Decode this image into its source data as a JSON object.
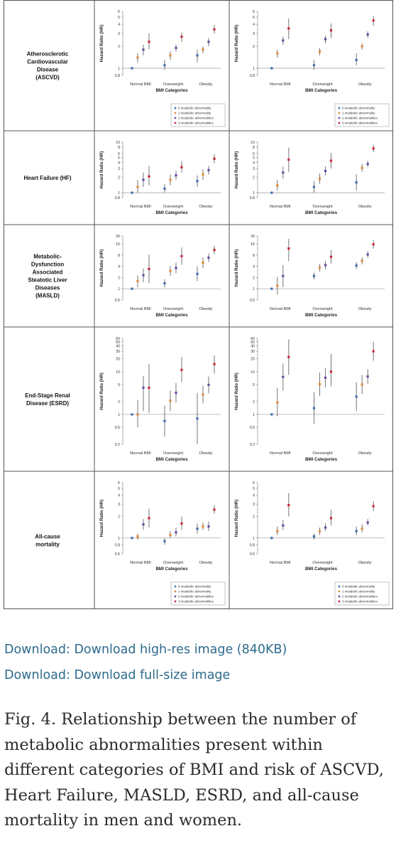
{
  "figure": {
    "xlabel": "BMI Categories",
    "ylabel": "Hazard Ratio (HR)",
    "categories": [
      "Normal BMI",
      "Overweight",
      "Obesity"
    ],
    "colors": [
      "#3f6fae",
      "#e28b3c",
      "#6b4aa3",
      "#c8283c"
    ],
    "legend_labels": [
      "0 metabolic abnormality",
      "1 metabolic abnormality",
      "2 metabolic abnormalities",
      "3 metabolic abnormalities"
    ],
    "legend_position": "bottom-right",
    "row_labels": [
      [
        "Atherosclerotic",
        "Cardiovascular",
        "Disease",
        "(ASCVD)"
      ],
      [
        "Heart Failure (HF)"
      ],
      [
        "Metabolic-",
        "Dysfunction",
        "Associated",
        "Steatotic Liver",
        "Diseases",
        "(MASLD)"
      ],
      [
        "End-Stage Renal",
        "Disease (ESRD)"
      ],
      [
        "All-cause",
        "mortality"
      ]
    ]
  },
  "chart_data": [
    {
      "type": "scatter",
      "row": "ASCVD",
      "panel": "left",
      "y_scale": "log",
      "ylim": [
        0.8,
        6
      ],
      "yticks": [
        "0.8",
        "1",
        "2",
        "3",
        "4",
        "5",
        "6"
      ],
      "ytick_values": [
        0.8,
        1,
        2,
        3,
        4,
        5,
        6
      ],
      "legend": true,
      "categories": [
        "Normal BMI",
        "Overweight",
        "Obesity"
      ],
      "series": [
        {
          "name": "0 metabolic abnormality",
          "values": [
            1.0,
            1.1,
            1.5
          ],
          "ci_low": [
            1.0,
            0.95,
            1.2
          ],
          "ci_high": [
            1.0,
            1.3,
            1.8
          ]
        },
        {
          "name": "1 metabolic abnormality",
          "values": [
            1.4,
            1.5,
            1.8
          ],
          "ci_low": [
            1.2,
            1.3,
            1.6
          ],
          "ci_high": [
            1.6,
            1.7,
            2.0
          ]
        },
        {
          "name": "2 metabolic abnormalities",
          "values": [
            1.8,
            1.9,
            2.3
          ],
          "ci_low": [
            1.5,
            1.7,
            2.0
          ],
          "ci_high": [
            2.1,
            2.1,
            2.6
          ]
        },
        {
          "name": "3 metabolic abnormalities",
          "values": [
            2.3,
            2.7,
            3.4
          ],
          "ci_low": [
            1.8,
            2.3,
            3.0
          ],
          "ci_high": [
            3.0,
            3.1,
            3.9
          ]
        }
      ]
    },
    {
      "type": "scatter",
      "row": "ASCVD",
      "panel": "right",
      "y_scale": "log",
      "ylim": [
        0.8,
        6
      ],
      "yticks": [
        "0.8",
        "1",
        "2",
        "3",
        "4",
        "5",
        "6"
      ],
      "ytick_values": [
        0.8,
        1,
        2,
        3,
        4,
        5,
        6
      ],
      "legend": true,
      "categories": [
        "Normal BMI",
        "Overweight",
        "Obesity"
      ],
      "series": [
        {
          "name": "0 metabolic abnormality",
          "values": [
            1.0,
            1.1,
            1.3
          ],
          "ci_low": [
            1.0,
            0.95,
            1.1
          ],
          "ci_high": [
            1.0,
            1.3,
            1.6
          ]
        },
        {
          "name": "1 metabolic abnormality",
          "values": [
            1.6,
            1.7,
            2.0
          ],
          "ci_low": [
            1.4,
            1.5,
            1.8
          ],
          "ci_high": [
            1.8,
            1.9,
            2.2
          ]
        },
        {
          "name": "2 metabolic abnormalities",
          "values": [
            2.4,
            2.5,
            2.9
          ],
          "ci_low": [
            2.1,
            2.2,
            2.6
          ],
          "ci_high": [
            2.7,
            2.8,
            3.2
          ]
        },
        {
          "name": "3 metabolic abnormalities",
          "values": [
            3.5,
            3.3,
            4.5
          ],
          "ci_low": [
            2.5,
            2.6,
            3.8
          ],
          "ci_high": [
            4.8,
            4.1,
            5.2
          ]
        }
      ]
    },
    {
      "type": "scatter",
      "row": "HF",
      "panel": "left",
      "y_scale": "log",
      "ylim": [
        0.8,
        10
      ],
      "yticks": [
        "0.8",
        "1",
        "2",
        "3",
        "4",
        "5",
        "6",
        "8",
        "10"
      ],
      "ytick_values": [
        0.8,
        1,
        2,
        3,
        4,
        5,
        6,
        8,
        10
      ],
      "legend": false,
      "categories": [
        "Normal BMI",
        "Overweight",
        "Obesity"
      ],
      "series": [
        {
          "name": "0 metabolic abnormality",
          "values": [
            1.0,
            1.2,
            1.7
          ],
          "ci_low": [
            1.0,
            1.0,
            1.3
          ],
          "ci_high": [
            1.0,
            1.5,
            2.2
          ]
        },
        {
          "name": "1 metabolic abnormality",
          "values": [
            1.3,
            1.8,
            2.3
          ],
          "ci_low": [
            1.0,
            1.4,
            1.8
          ],
          "ci_high": [
            1.8,
            2.3,
            2.9
          ]
        },
        {
          "name": "2 metabolic abnormalities",
          "values": [
            1.8,
            2.2,
            2.8
          ],
          "ci_low": [
            1.3,
            1.8,
            2.3
          ],
          "ci_high": [
            2.5,
            2.7,
            3.4
          ]
        },
        {
          "name": "3 metabolic abnormalities",
          "values": [
            2.1,
            3.2,
            4.7
          ],
          "ci_low": [
            1.4,
            2.5,
            3.8
          ],
          "ci_high": [
            3.4,
            4.2,
            5.8
          ]
        }
      ]
    },
    {
      "type": "scatter",
      "row": "HF",
      "panel": "right",
      "y_scale": "log",
      "ylim": [
        0.8,
        10
      ],
      "yticks": [
        "0.8",
        "1",
        "2",
        "3",
        "4",
        "5",
        "6",
        "8",
        "10"
      ],
      "ytick_values": [
        0.8,
        1,
        2,
        3,
        4,
        5,
        6,
        8,
        10
      ],
      "legend": false,
      "categories": [
        "Normal BMI",
        "Overweight",
        "Obesity"
      ],
      "series": [
        {
          "name": "0 metabolic abnormality",
          "values": [
            1.0,
            1.3,
            1.6
          ],
          "ci_low": [
            1.0,
            1.0,
            1.1
          ],
          "ci_high": [
            1.0,
            1.7,
            2.3
          ]
        },
        {
          "name": "1 metabolic abnormality",
          "values": [
            1.4,
            1.9,
            3.1
          ],
          "ci_low": [
            1.1,
            1.5,
            2.6
          ],
          "ci_high": [
            1.8,
            2.4,
            3.7
          ]
        },
        {
          "name": "2 metabolic abnormalities",
          "values": [
            2.5,
            2.7,
            3.7
          ],
          "ci_low": [
            1.9,
            2.2,
            3.2
          ],
          "ci_high": [
            3.3,
            3.3,
            4.3
          ]
        },
        {
          "name": "3 metabolic abnormalities",
          "values": [
            4.5,
            4.3,
            7.5
          ],
          "ci_low": [
            2.6,
            3.0,
            6.3
          ],
          "ci_high": [
            7.8,
            6.1,
            8.9
          ]
        }
      ]
    },
    {
      "type": "scatter",
      "row": "MASLD",
      "panel": "left",
      "y_scale": "log",
      "ylim": [
        0.5,
        26
      ],
      "yticks": [
        "0.5",
        "1",
        "2",
        "4",
        "8",
        "16",
        "26"
      ],
      "ytick_values": [
        0.5,
        1,
        2,
        4,
        8,
        16,
        26
      ],
      "legend": false,
      "categories": [
        "Normal BMI",
        "Overweight",
        "Obesity"
      ],
      "series": [
        {
          "name": "0 metabolic abnormality",
          "values": [
            1.0,
            1.4,
            2.5
          ],
          "ci_low": [
            1.0,
            1.1,
            1.6
          ],
          "ci_high": [
            1.0,
            1.8,
            4.0
          ]
        },
        {
          "name": "1 metabolic abnormality",
          "values": [
            1.6,
            3.0,
            5.0
          ],
          "ci_low": [
            1.1,
            2.2,
            3.6
          ],
          "ci_high": [
            2.3,
            4.1,
            6.9
          ]
        },
        {
          "name": "2 metabolic abnormalities",
          "values": [
            2.3,
            3.6,
            6.8
          ],
          "ci_low": [
            1.5,
            2.6,
            5.2
          ],
          "ci_high": [
            3.5,
            5.0,
            8.9
          ]
        },
        {
          "name": "3 metabolic abnormalities",
          "values": [
            3.4,
            7.5,
            11.0
          ],
          "ci_low": [
            1.4,
            4.4,
            8.5
          ],
          "ci_high": [
            8.2,
            12.8,
            14.2
          ]
        }
      ]
    },
    {
      "type": "scatter",
      "row": "MASLD",
      "panel": "right",
      "y_scale": "log",
      "ylim": [
        0.5,
        26
      ],
      "yticks": [
        "0.5",
        "1",
        "2",
        "4",
        "8",
        "16",
        "26"
      ],
      "ytick_values": [
        0.5,
        1,
        2,
        4,
        8,
        16,
        26
      ],
      "legend": false,
      "categories": [
        "Normal BMI",
        "Overweight",
        "Obesity"
      ],
      "series": [
        {
          "name": "0 metabolic abnormality",
          "values": [
            1.0,
            2.2,
            4.2
          ],
          "ci_low": [
            1.0,
            1.8,
            3.4
          ],
          "ci_high": [
            1.0,
            2.7,
            5.2
          ]
        },
        {
          "name": "1 metabolic abnormality",
          "values": [
            1.2,
            3.7,
            5.6
          ],
          "ci_low": [
            0.7,
            2.9,
            4.5
          ],
          "ci_high": [
            2.1,
            4.7,
            7.0
          ]
        },
        {
          "name": "2 metabolic abnormalities",
          "values": [
            2.2,
            4.3,
            8.3
          ],
          "ci_low": [
            1.1,
            3.3,
            6.8
          ],
          "ci_high": [
            4.3,
            5.6,
            10.1
          ]
        },
        {
          "name": "3 metabolic abnormalities",
          "values": [
            12.0,
            7.2,
            15.5
          ],
          "ci_low": [
            5.5,
            4.8,
            12.0
          ],
          "ci_high": [
            22.0,
            10.8,
            20.0
          ]
        }
      ]
    },
    {
      "type": "scatter",
      "row": "ESRD",
      "panel": "left",
      "y_scale": "log",
      "ylim": [
        0.2,
        60
      ],
      "yticks": [
        "0.2",
        "0.5",
        "1",
        "2",
        "5",
        "10",
        "20",
        "30",
        "40",
        "50",
        "60"
      ],
      "ytick_values": [
        0.2,
        0.5,
        1,
        2,
        5,
        10,
        20,
        30,
        40,
        50,
        60
      ],
      "legend": false,
      "categories": [
        "Normal BMI",
        "Overweight",
        "Obesity"
      ],
      "series": [
        {
          "name": "0 metabolic abnormality",
          "values": [
            1.0,
            0.7,
            0.8
          ],
          "ci_low": [
            1.0,
            0.3,
            0.2
          ],
          "ci_high": [
            1.0,
            1.6,
            3.2
          ]
        },
        {
          "name": "1 metabolic abnormality",
          "values": [
            1.0,
            2.1,
            2.9
          ],
          "ci_low": [
            0.5,
            1.2,
            1.8
          ],
          "ci_high": [
            2.2,
            3.6,
            4.7
          ]
        },
        {
          "name": "2 metabolic abnormalities",
          "values": [
            4.2,
            3.2,
            4.9
          ],
          "ci_low": [
            1.2,
            1.9,
            3.1
          ],
          "ci_high": [
            8.0,
            5.4,
            7.7
          ]
        },
        {
          "name": "3 metabolic abnormalities",
          "values": [
            4.2,
            11.0,
            15.0
          ],
          "ci_low": [
            1.1,
            5.7,
            9.0
          ],
          "ci_high": [
            15.0,
            22.0,
            24.0
          ]
        }
      ]
    },
    {
      "type": "scatter",
      "row": "ESRD",
      "panel": "right",
      "y_scale": "log",
      "ylim": [
        0.2,
        60
      ],
      "yticks": [
        "0.2",
        "0.5",
        "1",
        "2",
        "5",
        "10",
        "20",
        "30",
        "40",
        "50",
        "60"
      ],
      "ytick_values": [
        0.2,
        0.5,
        1,
        2,
        5,
        10,
        20,
        30,
        40,
        50,
        60
      ],
      "legend": false,
      "categories": [
        "Normal BMI",
        "Overweight",
        "Obesity"
      ],
      "series": [
        {
          "name": "0 metabolic abnormality",
          "values": [
            1.0,
            1.4,
            2.6
          ],
          "ci_low": [
            1.0,
            0.6,
            1.2
          ],
          "ci_high": [
            1.0,
            3.3,
            5.6
          ]
        },
        {
          "name": "1 metabolic abnormality",
          "values": [
            1.9,
            5.1,
            5.0
          ],
          "ci_low": [
            0.9,
            2.7,
            3.0
          ],
          "ci_high": [
            4.2,
            9.5,
            8.3
          ]
        },
        {
          "name": "2 metabolic abnormalities",
          "values": [
            7.5,
            7.2,
            7.7
          ],
          "ci_low": [
            3.6,
            4.3,
            5.2
          ],
          "ci_high": [
            15.5,
            12.0,
            11.4
          ]
        },
        {
          "name": "3 metabolic abnormalities",
          "values": [
            22.0,
            10.0,
            30.0
          ],
          "ci_low": [
            8.4,
            4.5,
            18.0
          ],
          "ci_high": [
            57.0,
            26.0,
            50.0
          ]
        }
      ]
    },
    {
      "type": "scatter",
      "row": "All-cause mortality",
      "panel": "left",
      "y_scale": "log",
      "ylim": [
        0.6,
        6
      ],
      "yticks": [
        "0.6",
        "0.8",
        "1",
        "2",
        "3",
        "4",
        "5",
        "6"
      ],
      "ytick_values": [
        0.6,
        0.8,
        1,
        2,
        3,
        4,
        5,
        6
      ],
      "legend": true,
      "categories": [
        "Normal BMI",
        "Overweight",
        "Obesity"
      ],
      "series": [
        {
          "name": "0 metabolic abnormality",
          "values": [
            1.0,
            0.9,
            1.35
          ],
          "ci_low": [
            1.0,
            0.8,
            1.15
          ],
          "ci_high": [
            1.0,
            1.0,
            1.6
          ]
        },
        {
          "name": "1 metabolic abnormality",
          "values": [
            1.05,
            1.1,
            1.45
          ],
          "ci_low": [
            0.95,
            1.0,
            1.3
          ],
          "ci_high": [
            1.15,
            1.25,
            1.65
          ]
        },
        {
          "name": "2 metabolic abnormalities",
          "values": [
            1.55,
            1.2,
            1.45
          ],
          "ci_low": [
            1.3,
            1.05,
            1.25
          ],
          "ci_high": [
            1.85,
            1.4,
            1.7
          ]
        },
        {
          "name": "3 metabolic abnormalities",
          "values": [
            1.9,
            1.6,
            2.5
          ],
          "ci_low": [
            1.4,
            1.3,
            2.2
          ],
          "ci_high": [
            2.6,
            2.0,
            2.9
          ]
        }
      ]
    },
    {
      "type": "scatter",
      "row": "All-cause mortality",
      "panel": "right",
      "y_scale": "log",
      "ylim": [
        0.6,
        6
      ],
      "yticks": [
        "0.6",
        "0.8",
        "1",
        "2",
        "3",
        "4",
        "5",
        "6"
      ],
      "ytick_values": [
        0.6,
        0.8,
        1,
        2,
        3,
        4,
        5,
        6
      ],
      "legend": true,
      "categories": [
        "Normal BMI",
        "Overweight",
        "Obesity"
      ],
      "series": [
        {
          "name": "0 metabolic abnormality",
          "values": [
            1.0,
            1.05,
            1.25
          ],
          "ci_low": [
            1.0,
            0.95,
            1.1
          ],
          "ci_high": [
            1.0,
            1.15,
            1.45
          ]
        },
        {
          "name": "1 metabolic abnormality",
          "values": [
            1.25,
            1.25,
            1.35
          ],
          "ci_low": [
            1.1,
            1.1,
            1.2
          ],
          "ci_high": [
            1.45,
            1.4,
            1.55
          ]
        },
        {
          "name": "2 metabolic abnormalities",
          "values": [
            1.5,
            1.4,
            1.65
          ],
          "ci_low": [
            1.3,
            1.25,
            1.5
          ],
          "ci_high": [
            1.8,
            1.6,
            1.85
          ]
        },
        {
          "name": "3 metabolic abnormalities",
          "values": [
            2.9,
            1.9,
            2.8
          ],
          "ci_low": [
            2.0,
            1.5,
            2.4
          ],
          "ci_high": [
            4.3,
            2.5,
            3.3
          ]
        }
      ]
    }
  ],
  "links": [
    "Download: Download high-res image (840KB)",
    "Download: Download full-size image"
  ],
  "caption": "Fig. 4. Relationship between the number of metabolic abnormalities present within different categories of BMI and risk of ASCVD, Heart Failure, MASLD, ESRD, and all-cause mortality in men and women."
}
